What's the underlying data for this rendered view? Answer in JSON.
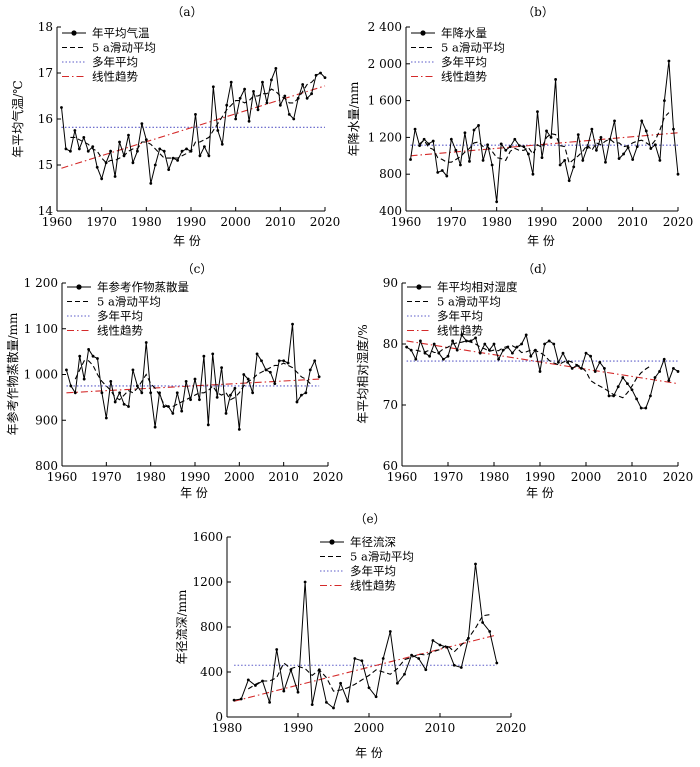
{
  "legend_labels": {
    "moving_avg": "5 a滑动平均",
    "mean": "多年平均",
    "trend": "线性趋势"
  },
  "colors": {
    "obs": "#000000",
    "moving_avg": "#000000",
    "mean": "#5b5bc8",
    "trend": "#d42a2a"
  },
  "chart_data": [
    {
      "type": "line",
      "panel_label": "（a）",
      "xlabel": "年  份",
      "ylabel": "年平均气温/℃",
      "xlim": [
        1960,
        2020
      ],
      "ylim": [
        14,
        18
      ],
      "xticks": [
        1960,
        1970,
        1980,
        1990,
        2000,
        2010,
        2020
      ],
      "yticks": [
        14,
        15,
        16,
        17,
        18
      ],
      "ytick_labels": [
        "14",
        "15",
        "16",
        "17",
        "18"
      ],
      "x_start": 1961,
      "series": [
        {
          "name": "年平均气温",
          "values": [
            16.25,
            15.35,
            15.3,
            15.75,
            15.35,
            15.6,
            15.3,
            15.4,
            14.95,
            14.7,
            15.05,
            15.3,
            14.75,
            15.5,
            15.2,
            15.65,
            15.05,
            15.3,
            15.9,
            15.55,
            14.6,
            15.0,
            15.35,
            15.3,
            14.9,
            15.15,
            15.1,
            15.3,
            15.35,
            15.3,
            16.1,
            15.2,
            15.4,
            15.2,
            16.7,
            15.75,
            15.45,
            16.3,
            16.8,
            16.0,
            16.45,
            16.65,
            15.95,
            16.6,
            16.2,
            16.8,
            16.35,
            16.85,
            17.1,
            16.3,
            16.5,
            16.1,
            16.0,
            16.45,
            16.75,
            16.45,
            16.55,
            16.95,
            17.0,
            16.9
          ]
        },
        {
          "name": "5 a滑动平均",
          "values": [
            15.6,
            15.6,
            15.55,
            15.5,
            15.45,
            15.35,
            15.3,
            15.15,
            15.05,
            15.1,
            15.1,
            15.15,
            15.2,
            15.3,
            15.35,
            15.35,
            15.5,
            15.5,
            15.45,
            15.35,
            15.25,
            15.15,
            15.15,
            15.15,
            15.15,
            15.2,
            15.25,
            15.3,
            15.5,
            15.5,
            15.55,
            15.6,
            15.75,
            15.9,
            16.05,
            16.2,
            16.3,
            16.4,
            16.4,
            16.35,
            16.4,
            16.5,
            16.5,
            16.55,
            16.55,
            16.65,
            16.6,
            16.5,
            16.45,
            16.35,
            16.35,
            16.45,
            16.6,
            16.75,
            16.8,
            16.9
          ]
        }
      ],
      "mean": 15.82,
      "trend": [
        14.93,
        16.72
      ]
    },
    {
      "type": "line",
      "panel_label": "（b）",
      "xlabel": "年  份",
      "ylabel": "年降水量/mm",
      "xlim": [
        1960,
        2020
      ],
      "ylim": [
        400,
        2400
      ],
      "xticks": [
        1960,
        1970,
        1980,
        1990,
        2000,
        2010,
        2020
      ],
      "yticks": [
        400,
        800,
        1200,
        1600,
        2000,
        2400
      ],
      "ytick_labels": [
        "400",
        "800",
        "1 200",
        "1 600",
        "2 000",
        "2 400"
      ],
      "x_start": 1961,
      "series": [
        {
          "name": "年降水量",
          "values": [
            960,
            1290,
            1110,
            1180,
            1130,
            1160,
            820,
            840,
            780,
            1180,
            1060,
            900,
            1250,
            940,
            1280,
            1330,
            950,
            1120,
            900,
            500,
            1130,
            1060,
            1100,
            1180,
            1110,
            1100,
            1020,
            800,
            1480,
            980,
            1270,
            1200,
            1830,
            900,
            950,
            730,
            880,
            1230,
            950,
            1090,
            1290,
            1060,
            1200,
            930,
            1180,
            1380,
            970,
            1020,
            1090,
            960,
            1100,
            1380,
            1270,
            1080,
            1120,
            950,
            1600,
            2030,
            1290,
            800
          ]
        },
        {
          "name": "5 a滑动平均",
          "values": [
            1130,
            1170,
            1090,
            1070,
            980,
            960,
            930,
            930,
            960,
            990,
            1040,
            1080,
            1140,
            1150,
            1100,
            1100,
            1050,
            980,
            970,
            950,
            1050,
            1080,
            1060,
            1060,
            1090,
            1020,
            1120,
            1090,
            1200,
            1240,
            1230,
            1110,
            1100,
            920,
            960,
            1000,
            1050,
            1120,
            1060,
            1140,
            1120,
            1160,
            1180,
            1140,
            1140,
            1100,
            1110,
            1140,
            1160,
            1170,
            1140,
            1110,
            1170,
            1280,
            1420,
            1470
          ]
        }
      ],
      "mean": 1115,
      "trend": [
        1000,
        1250
      ]
    },
    {
      "type": "line",
      "panel_label": "（c）",
      "xlabel": "年  份",
      "ylabel": "年参考作物蒸散量/mm",
      "xlim": [
        1960,
        2020
      ],
      "ylim": [
        800,
        1200
      ],
      "xticks": [
        1960,
        1970,
        1980,
        1990,
        2000,
        2010,
        2020
      ],
      "yticks": [
        800,
        900,
        1000,
        1100,
        1200
      ],
      "ytick_labels": [
        "800",
        "900",
        "1 000",
        "1 100",
        "1 200"
      ],
      "x_start": 1961,
      "series": [
        {
          "name": "年参考作物蒸散量",
          "values": [
            1010,
            975,
            960,
            1040,
            990,
            1055,
            1040,
            1035,
            960,
            905,
            985,
            940,
            960,
            935,
            930,
            1010,
            975,
            960,
            1070,
            960,
            885,
            960,
            930,
            930,
            915,
            960,
            920,
            985,
            945,
            990,
            945,
            1040,
            890,
            1045,
            950,
            1015,
            915,
            955,
            970,
            880,
            1000,
            990,
            960,
            1045,
            1030,
            1010,
            1005,
            980,
            1030,
            1030,
            1025,
            1110,
            940,
            955,
            960,
            1010,
            1030,
            995
          ]
        },
        {
          "name": "5 a滑动平均",
          "values": [
            990,
            1010,
            1030,
            1030,
            1020,
            1000,
            985,
            975,
            965,
            950,
            945,
            955,
            965,
            960,
            970,
            985,
            1000,
            980,
            970,
            955,
            935,
            930,
            930,
            935,
            940,
            945,
            950,
            955,
            960,
            960,
            965,
            975,
            960,
            955,
            960,
            945,
            950,
            960,
            975,
            985,
            990,
            1000,
            1005,
            1010,
            1015,
            1020,
            1020,
            1025,
            1020,
            1015,
            1005,
            995,
            990,
            980
          ]
        }
      ],
      "mean": 975,
      "trend": [
        960,
        990
      ]
    },
    {
      "type": "line",
      "panel_label": "（d）",
      "xlabel": "年  份",
      "ylabel": "年平均相对湿度/%",
      "xlim": [
        1960,
        2020
      ],
      "ylim": [
        60,
        90
      ],
      "xticks": [
        1960,
        1970,
        1980,
        1990,
        2000,
        2010,
        2020
      ],
      "yticks": [
        60,
        70,
        80,
        90
      ],
      "ytick_labels": [
        "60",
        "70",
        "80",
        "90"
      ],
      "x_start": 1961,
      "series": [
        {
          "name": "年平均相对湿度",
          "values": [
            79.5,
            79.0,
            77.5,
            80.5,
            78.5,
            78.0,
            80.0,
            78.5,
            77.5,
            78.0,
            80.5,
            79.0,
            81.5,
            80.5,
            80.5,
            81.0,
            78.5,
            80.0,
            79.0,
            80.0,
            77.5,
            79.0,
            79.5,
            78.5,
            79.5,
            80.0,
            81.5,
            78.0,
            79.0,
            75.5,
            80.0,
            80.5,
            80.0,
            77.0,
            78.5,
            77.0,
            76.0,
            76.5,
            76.0,
            78.5,
            78.0,
            75.5,
            77.0,
            76.0,
            71.5,
            71.5,
            73.0,
            74.5,
            73.5,
            72.5,
            71.0,
            69.5,
            69.5,
            71.5,
            74.5,
            75.5,
            77.5,
            74.0,
            76.0,
            75.5
          ]
        },
        {
          "name": "5 a滑动平均",
          "values": [
            79.0,
            78.8,
            78.7,
            79.0,
            78.6,
            78.6,
            79.2,
            79.5,
            80.0,
            80.2,
            80.3,
            80.5,
            80.3,
            80.0,
            79.5,
            79.2,
            78.8,
            79.0,
            78.9,
            79.4,
            79.6,
            79.7,
            79.3,
            78.6,
            78.7,
            79.0,
            78.9,
            78.6,
            78.1,
            77.3,
            76.9,
            76.6,
            77.0,
            77.3,
            77.0,
            76.6,
            76.2,
            75.5,
            74.0,
            73.5,
            73.1,
            72.7,
            72.2,
            71.7,
            71.5,
            71.2,
            72.0,
            73.1,
            74.4,
            75.3,
            75.9,
            76.4
          ]
        }
      ],
      "mean": 77.2,
      "trend": [
        80.5,
        73.5
      ]
    },
    {
      "type": "line",
      "panel_label": "（e）",
      "xlabel": "年  份",
      "ylabel": "年径流深/mm",
      "xlim": [
        1980,
        2020
      ],
      "ylim": [
        0,
        1600
      ],
      "xticks": [
        1980,
        1990,
        2000,
        2010,
        2020
      ],
      "yticks": [
        0,
        400,
        800,
        1200,
        1600
      ],
      "ytick_labels": [
        "0",
        "400",
        "800",
        "1200",
        "1600"
      ],
      "x_start": 1981,
      "series": [
        {
          "name": "年径流深",
          "values": [
            150,
            160,
            330,
            280,
            320,
            130,
            600,
            230,
            420,
            220,
            1200,
            110,
            420,
            130,
            80,
            300,
            140,
            520,
            500,
            260,
            180,
            520,
            760,
            300,
            380,
            550,
            520,
            420,
            680,
            640,
            620,
            460,
            440,
            700,
            1360,
            840,
            760,
            480
          ]
        },
        {
          "name": "5 a滑动平均",
          "values": [
            250,
            290,
            320,
            320,
            350,
            480,
            430,
            450,
            430,
            370,
            420,
            350,
            230,
            240,
            260,
            290,
            330,
            370,
            420,
            400,
            380,
            430,
            510,
            530,
            560,
            550,
            580,
            600,
            640,
            580,
            640,
            700,
            790,
            900,
            910
          ]
        }
      ],
      "mean": 460,
      "trend": [
        140,
        730
      ]
    }
  ]
}
